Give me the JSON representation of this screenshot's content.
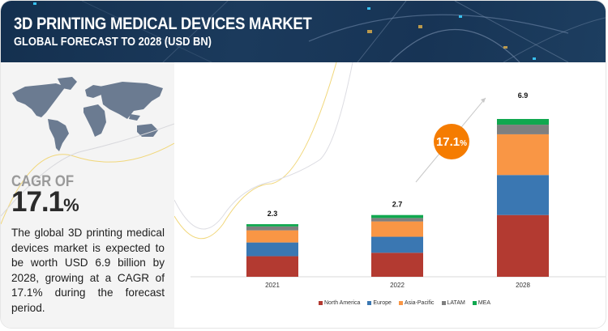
{
  "header": {
    "title": "3D PRINTING MEDICAL DEVICES MARKET",
    "subtitle": "GLOBAL FORECAST TO 2028 (USD BN)"
  },
  "left_panel": {
    "cagr_label": "CAGR OF",
    "cagr_value": "17.1",
    "cagr_unit": "%",
    "description": "The global 3D printing medical devices market is expected to be worth USD 6.9 billion by 2028, growing at a CAGR of 17.1% during the forecast period."
  },
  "bubble": {
    "value": "17.1",
    "unit": "%",
    "color": "#f57c00"
  },
  "chart_data": {
    "type": "bar",
    "stacked": true,
    "title": "3D Printing Medical Devices Market, Global Forecast to 2028 (USD BN)",
    "xlabel": "",
    "ylabel": "",
    "categories": [
      "2021",
      "2022",
      "2028"
    ],
    "totals": [
      "2.3",
      "2.7",
      "6.9"
    ],
    "total_values": [
      2.3,
      2.7,
      6.9
    ],
    "series": [
      {
        "name": "North America",
        "color": "#b33a31",
        "values": [
          0.9,
          1.05,
          2.7
        ]
      },
      {
        "name": "Europe",
        "color": "#3a77b2",
        "values": [
          0.6,
          0.7,
          1.75
        ]
      },
      {
        "name": "Asia-Pacific",
        "color": "#f99645",
        "values": [
          0.53,
          0.67,
          1.78
        ]
      },
      {
        "name": "LATAM",
        "color": "#7f7f7f",
        "values": [
          0.17,
          0.15,
          0.42
        ]
      },
      {
        "name": "MEA",
        "color": "#10a84f",
        "values": [
          0.1,
          0.13,
          0.25
        ]
      }
    ],
    "ylim": [
      0,
      7.2
    ],
    "grid": false,
    "legend": "bottom-center",
    "annotation": "17.1%"
  }
}
